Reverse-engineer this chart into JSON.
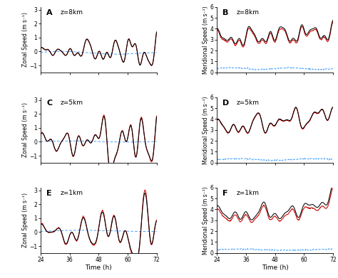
{
  "xlim": [
    24,
    72
  ],
  "xticks": [
    24,
    36,
    48,
    60,
    72
  ],
  "panels": [
    {
      "label": "A",
      "title": "z=8km",
      "ylabel": "Zonal Speed (m s⁻¹)",
      "ylim": [
        -1.5,
        3.2
      ],
      "yticks": [
        -1,
        0,
        1,
        2,
        3
      ],
      "col": 0,
      "row": 0,
      "meridional": false
    },
    {
      "label": "B",
      "title": "z=8km",
      "ylabel": "Meridional Speed (m s⁻¹)",
      "ylim": [
        0,
        6
      ],
      "yticks": [
        0,
        1,
        2,
        3,
        4,
        5,
        6
      ],
      "col": 1,
      "row": 0,
      "meridional": true
    },
    {
      "label": "C",
      "title": "z=5km",
      "ylabel": "Zonal Speed (m s⁻¹)",
      "ylim": [
        -1.5,
        3.2
      ],
      "yticks": [
        -1,
        0,
        1,
        2,
        3
      ],
      "col": 0,
      "row": 1,
      "meridional": false
    },
    {
      "label": "D",
      "title": "z=5km",
      "ylabel": "Meridional Speed (m s⁻¹)",
      "ylim": [
        0,
        6
      ],
      "yticks": [
        0,
        1,
        2,
        3,
        4,
        5,
        6
      ],
      "col": 1,
      "row": 1,
      "meridional": true
    },
    {
      "label": "E",
      "title": "z=1km",
      "ylabel": "Zonal Speed (m s⁻¹)",
      "ylim": [
        -1.5,
        3.2
      ],
      "yticks": [
        -1,
        0,
        1,
        2,
        3
      ],
      "col": 0,
      "row": 2,
      "meridional": false
    },
    {
      "label": "F",
      "title": "z=1km",
      "ylabel": "Meridional Speed (m s⁻¹)",
      "ylim": [
        0,
        6
      ],
      "yticks": [
        0,
        1,
        2,
        3,
        4,
        5,
        6
      ],
      "col": 1,
      "row": 2,
      "meridional": true
    }
  ],
  "line_black": "#000000",
  "line_red": "#cc0000",
  "line_blue_dashed": "#3399ff",
  "xlabel": "Time (h)",
  "fig_bgcolor": "#ffffff"
}
